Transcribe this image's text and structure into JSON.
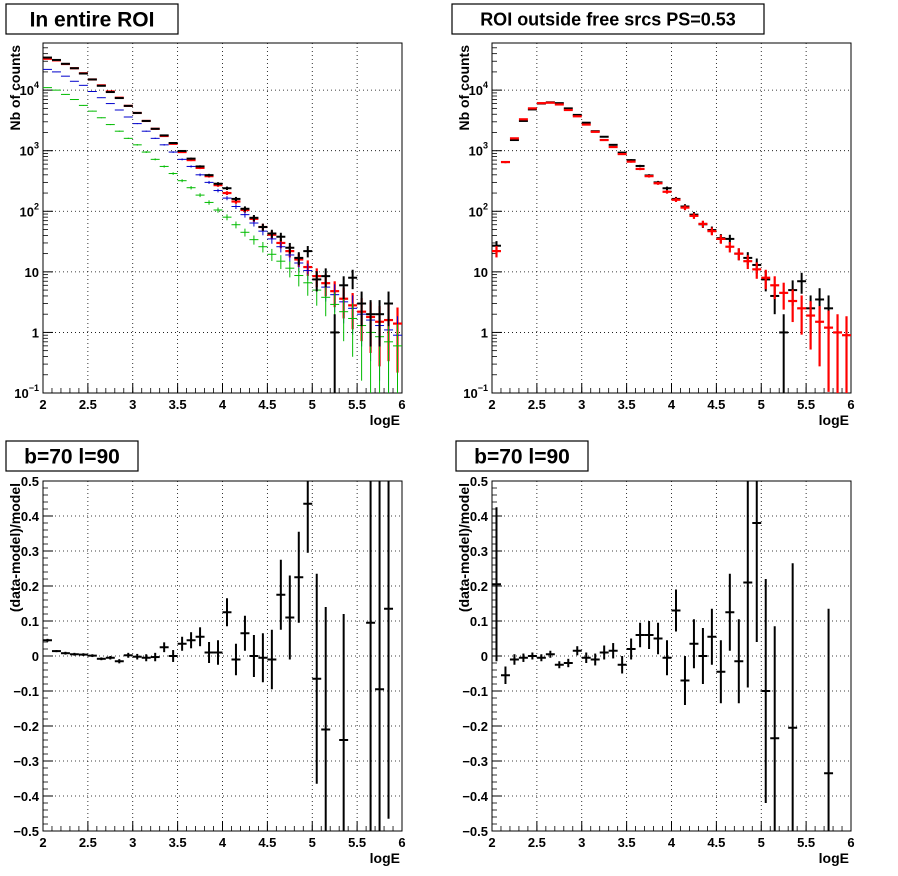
{
  "chart_data": [
    {
      "type": "scatter",
      "title": "In entire ROI",
      "xlabel": "logE",
      "ylabel": "Nb of counts",
      "xlim": [
        2,
        6
      ],
      "ylim": [
        0.1,
        60000
      ],
      "yscale": "log",
      "grid": true,
      "x_ticks": [
        "2",
        "2.5",
        "3",
        "3.5",
        "4",
        "4.5",
        "5",
        "5.5",
        "6"
      ],
      "y_ticks": [
        {
          "v": 0.1,
          "base": "10",
          "exp": "−1"
        },
        {
          "v": 1,
          "base": "1",
          "exp": ""
        },
        {
          "v": 10,
          "base": "10",
          "exp": ""
        },
        {
          "v": 100,
          "base": "10",
          "exp": "2"
        },
        {
          "v": 1000,
          "base": "10",
          "exp": "3"
        },
        {
          "v": 10000,
          "base": "10",
          "exp": "4"
        }
      ],
      "series": [
        {
          "color": "#ff0000",
          "width": 2.2,
          "x": [
            2.05,
            2.15,
            2.25,
            2.35,
            2.45,
            2.55,
            2.65,
            2.75,
            2.85,
            2.95,
            3.05,
            3.15,
            3.25,
            3.35,
            3.45,
            3.55,
            3.65,
            3.75,
            3.85,
            3.95,
            4.05,
            4.15,
            4.25,
            4.35,
            4.45,
            4.55,
            4.65,
            4.75,
            4.85,
            4.95,
            5.05,
            5.15,
            5.25,
            5.35,
            5.45,
            5.55,
            5.65,
            5.75,
            5.85,
            5.95
          ],
          "y": [
            33000,
            31000,
            27000,
            23000,
            19000,
            15000,
            12000,
            9500,
            7500,
            5500,
            4200,
            3100,
            2300,
            1750,
            1300,
            950,
            700,
            520,
            380,
            270,
            200,
            145,
            105,
            75,
            55,
            41,
            30,
            22,
            16,
            12,
            8.5,
            6.5,
            4.8,
            3.6,
            2.8,
            2.2,
            1.8,
            1.5,
            1.6,
            1.4
          ]
        },
        {
          "color": "#0000cc",
          "width": 1,
          "x": [
            2.05,
            2.15,
            2.25,
            2.35,
            2.45,
            2.55,
            2.65,
            2.75,
            2.85,
            2.95,
            3.05,
            3.15,
            3.25,
            3.35,
            3.45,
            3.55,
            3.65,
            3.75,
            3.85,
            3.95,
            4.05,
            4.15,
            4.25,
            4.35,
            4.45,
            4.55,
            4.65,
            4.75,
            4.85,
            4.95,
            5.05,
            5.15,
            5.25,
            5.35,
            5.45,
            5.55,
            5.65,
            5.75,
            5.85,
            5.95
          ],
          "y": [
            22000,
            20000,
            17000,
            14000,
            12000,
            9500,
            7500,
            6000,
            4700,
            3600,
            2800,
            2100,
            1600,
            1250,
            950,
            720,
            550,
            400,
            300,
            220,
            165,
            120,
            88,
            64,
            47,
            35,
            26,
            19,
            14,
            10.5,
            7.5,
            5.6,
            4.2,
            3.2,
            2.5,
            2,
            1.6,
            1.3,
            1.1,
            0.9
          ]
        },
        {
          "color": "#00bb00",
          "width": 1,
          "x": [
            2.05,
            2.15,
            2.25,
            2.35,
            2.45,
            2.55,
            2.65,
            2.75,
            2.85,
            2.95,
            3.05,
            3.15,
            3.25,
            3.35,
            3.45,
            3.55,
            3.65,
            3.75,
            3.85,
            3.95,
            4.05,
            4.15,
            4.25,
            4.35,
            4.45,
            4.55,
            4.65,
            4.75,
            4.85,
            4.95,
            5.05,
            5.15,
            5.25,
            5.35,
            5.45,
            5.55,
            5.65,
            5.75,
            5.85,
            5.95
          ],
          "y": [
            11000,
            10000,
            8500,
            7000,
            5600,
            4500,
            3500,
            2700,
            2100,
            1600,
            1250,
            950,
            720,
            550,
            420,
            320,
            245,
            185,
            140,
            105,
            80,
            60,
            45,
            34,
            26,
            19.5,
            15,
            11.5,
            8.7,
            6.6,
            5,
            3.8,
            2.9,
            2.2,
            1.7,
            1.3,
            1,
            0.85,
            0.7,
            0.6
          ]
        },
        {
          "color": "#000000",
          "width": 2,
          "x": [
            2.05,
            2.15,
            2.25,
            2.35,
            2.45,
            2.55,
            2.65,
            2.75,
            2.85,
            2.95,
            3.05,
            3.15,
            3.25,
            3.35,
            3.45,
            3.55,
            3.65,
            3.75,
            3.85,
            3.95,
            4.05,
            4.15,
            4.25,
            4.35,
            4.45,
            4.55,
            4.65,
            4.75,
            4.85,
            4.95,
            5.05,
            5.15,
            5.25,
            5.35,
            5.45,
            5.55,
            5.65,
            5.75,
            5.85
          ],
          "y": [
            34500,
            31500,
            27200,
            23000,
            18800,
            15000,
            11800,
            9300,
            7400,
            5500,
            4200,
            3100,
            2300,
            1790,
            1340,
            990,
            740,
            550,
            395,
            285,
            240,
            160,
            110,
            78,
            55,
            43,
            38,
            25,
            17,
            22,
            7.5,
            8.5,
            1,
            6,
            8,
            3,
            2,
            2,
            3
          ]
        }
      ]
    },
    {
      "type": "scatter",
      "title": "ROI outside free srcs PS=0.53",
      "xlabel": "logE",
      "ylabel": "Nb of counts",
      "xlim": [
        2,
        6
      ],
      "ylim": [
        0.1,
        60000
      ],
      "yscale": "log",
      "grid": true,
      "x_ticks": [
        "2",
        "2.5",
        "3",
        "3.5",
        "4",
        "4.5",
        "5",
        "5.5",
        "6"
      ],
      "y_ticks": [
        {
          "v": 0.1,
          "base": "10",
          "exp": "−1"
        },
        {
          "v": 1,
          "base": "1",
          "exp": ""
        },
        {
          "v": 10,
          "base": "10",
          "exp": ""
        },
        {
          "v": 100,
          "base": "10",
          "exp": "2"
        },
        {
          "v": 1000,
          "base": "10",
          "exp": "3"
        },
        {
          "v": 10000,
          "base": "10",
          "exp": "4"
        }
      ],
      "series": [
        {
          "color": "#000000",
          "width": 2,
          "x": [
            2.05,
            2.15,
            2.25,
            2.35,
            2.45,
            2.55,
            2.65,
            2.75,
            2.85,
            2.95,
            3.05,
            3.15,
            3.25,
            3.35,
            3.45,
            3.55,
            3.65,
            3.75,
            3.85,
            3.95,
            4.05,
            4.15,
            4.25,
            4.35,
            4.45,
            4.55,
            4.65,
            4.75,
            4.85,
            4.95,
            5.05,
            5.15,
            5.25,
            5.35,
            5.45,
            5.55,
            5.65,
            5.75
          ],
          "y": [
            27,
            650,
            1500,
            3100,
            4800,
            6000,
            6300,
            6100,
            5000,
            3900,
            2900,
            2100,
            1700,
            1250,
            930,
            700,
            560,
            390,
            300,
            240,
            160,
            120,
            88,
            61,
            49,
            36,
            35,
            20,
            17,
            13,
            7.5,
            4,
            1,
            5,
            7,
            2.5,
            3.5,
            2.5
          ]
        },
        {
          "color": "#ff0000",
          "width": 2.2,
          "x": [
            2.05,
            2.15,
            2.25,
            2.35,
            2.45,
            2.55,
            2.65,
            2.75,
            2.85,
            2.95,
            3.05,
            3.15,
            3.25,
            3.35,
            3.45,
            3.55,
            3.65,
            3.75,
            3.85,
            3.95,
            4.05,
            4.15,
            4.25,
            4.35,
            4.45,
            4.55,
            4.65,
            4.75,
            4.85,
            4.95,
            5.05,
            5.15,
            5.25,
            5.35,
            5.45,
            5.55,
            5.65,
            5.75,
            5.85,
            5.95
          ],
          "y": [
            22,
            650,
            1600,
            3300,
            5000,
            6100,
            6200,
            5800,
            4700,
            3700,
            2700,
            2050,
            1500,
            1150,
            880,
            660,
            500,
            380,
            290,
            210,
            155,
            115,
            84,
            62,
            47,
            35,
            26,
            20,
            15,
            11,
            8,
            6,
            4.5,
            3.3,
            2.5,
            1.9,
            1.5,
            1.2,
            1,
            0.9
          ]
        }
      ]
    },
    {
      "type": "scatter",
      "title": "b=70 l=90",
      "xlabel": "logE",
      "ylabel": "(data-model)/model",
      "xlim": [
        2,
        6
      ],
      "ylim": [
        -0.5,
        0.5
      ],
      "grid": true,
      "x_ticks": [
        "2",
        "2.5",
        "3",
        "3.5",
        "4",
        "4.5",
        "5",
        "5.5",
        "6"
      ],
      "y_ticks": [
        "−0.5",
        "−0.4",
        "−0.3",
        "−0.2",
        "−0.1",
        "0",
        "0.1",
        "0.2",
        "0.3",
        "0.4",
        "0.5"
      ],
      "points": {
        "x": [
          2.05,
          2.15,
          2.25,
          2.35,
          2.45,
          2.55,
          2.65,
          2.75,
          2.85,
          2.95,
          3.05,
          3.15,
          3.25,
          3.35,
          3.45,
          3.55,
          3.65,
          3.75,
          3.85,
          3.95,
          4.05,
          4.15,
          4.25,
          4.35,
          4.45,
          4.55,
          4.65,
          4.75,
          4.85,
          4.95,
          5.05,
          5.15,
          5.25,
          5.35,
          5.45,
          5.55,
          5.65,
          5.75,
          5.85
        ],
        "y": [
          0.045,
          0.014,
          0.008,
          0.005,
          0.004,
          0.001,
          -0.008,
          -0.005,
          -0.015,
          0.002,
          -0.002,
          -0.005,
          -0.003,
          0.025,
          0.0,
          0.035,
          0.045,
          0.055,
          0.01,
          0.01,
          0.125,
          -0.01,
          0.065,
          0.0,
          -0.005,
          -0.01,
          0.175,
          0.11,
          0.225,
          0.435,
          -0.065,
          -0.21,
          null,
          -0.24,
          null,
          null,
          0.095,
          -0.095,
          0.135
        ],
        "err": [
          0.004,
          0.003,
          0.004,
          0.004,
          0.004,
          0.004,
          0.004,
          0.005,
          0.006,
          0.007,
          0.008,
          0.01,
          0.012,
          0.014,
          0.017,
          0.02,
          0.023,
          0.027,
          0.03,
          0.035,
          0.04,
          0.045,
          0.05,
          0.06,
          0.07,
          0.085,
          0.1,
          0.12,
          0.13,
          0.14,
          0.3,
          0.35,
          0,
          0.36,
          0,
          0,
          0.6,
          0.6,
          0.6
        ]
      }
    },
    {
      "type": "scatter",
      "title": "b=70 l=90",
      "xlabel": "logE",
      "ylabel": "(data-model)/model",
      "xlim": [
        2,
        6
      ],
      "ylim": [
        -0.5,
        0.5
      ],
      "grid": true,
      "x_ticks": [
        "2",
        "2.5",
        "3",
        "3.5",
        "4",
        "4.5",
        "5",
        "5.5",
        "6"
      ],
      "y_ticks": [
        "−0.5",
        "−0.4",
        "−0.3",
        "−0.2",
        "−0.1",
        "0",
        "0.1",
        "0.2",
        "0.3",
        "0.4",
        "0.5"
      ],
      "points": {
        "x": [
          2.05,
          2.15,
          2.25,
          2.35,
          2.45,
          2.55,
          2.65,
          2.75,
          2.85,
          2.95,
          3.05,
          3.15,
          3.25,
          3.35,
          3.45,
          3.55,
          3.65,
          3.75,
          3.85,
          3.95,
          4.05,
          4.15,
          4.25,
          4.35,
          4.45,
          4.55,
          4.65,
          4.75,
          4.85,
          4.95,
          5.05,
          5.15,
          5.25,
          5.35,
          5.45,
          5.55,
          5.65,
          5.75
        ],
        "y": [
          0.205,
          -0.055,
          -0.01,
          -0.005,
          0.0,
          -0.005,
          0.005,
          -0.025,
          -0.02,
          0.015,
          -0.005,
          -0.01,
          0.01,
          0.015,
          -0.025,
          0.02,
          0.06,
          0.06,
          0.05,
          -0.005,
          0.13,
          -0.07,
          0.035,
          0.0,
          0.055,
          -0.045,
          0.125,
          -0.015,
          0.21,
          0.38,
          -0.1,
          -0.235,
          null,
          -0.205,
          null,
          null,
          null,
          -0.335
        ],
        "err": [
          0.22,
          0.025,
          0.015,
          0.012,
          0.01,
          0.01,
          0.01,
          0.01,
          0.012,
          0.013,
          0.015,
          0.017,
          0.02,
          0.022,
          0.025,
          0.03,
          0.035,
          0.04,
          0.045,
          0.05,
          0.06,
          0.07,
          0.07,
          0.08,
          0.08,
          0.09,
          0.11,
          0.12,
          0.3,
          0.34,
          0.32,
          0.32,
          0,
          0.47,
          0,
          0,
          0,
          0.47
        ]
      }
    }
  ]
}
